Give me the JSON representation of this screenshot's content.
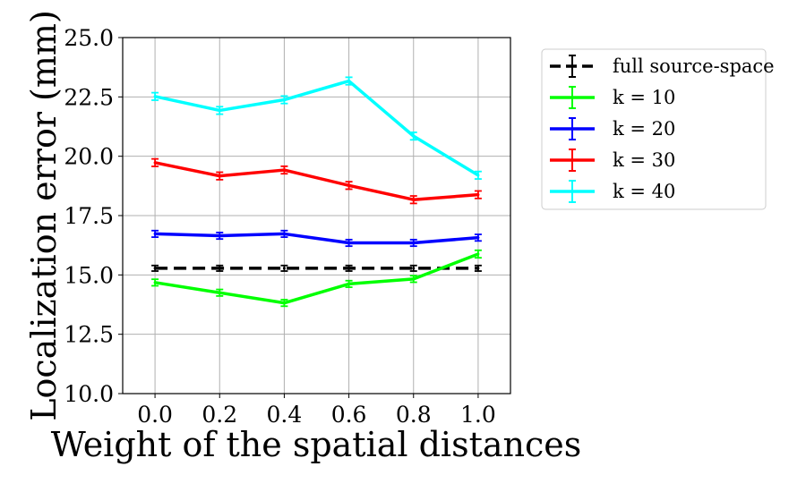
{
  "chart_data": {
    "type": "line",
    "title": "",
    "xlabel": "Weight of the spatial distances",
    "ylabel": "Localization error (mm)",
    "x": [
      0.0,
      0.2,
      0.4,
      0.6,
      0.8,
      1.0
    ],
    "x_tick_labels": [
      "0.0",
      "0.2",
      "0.4",
      "0.6",
      "0.8",
      "1.0"
    ],
    "xlim": [
      -0.1,
      1.1
    ],
    "y_ticks": [
      10.0,
      12.5,
      15.0,
      17.5,
      20.0,
      22.5,
      25.0
    ],
    "y_tick_labels": [
      "10.0",
      "12.5",
      "15.0",
      "17.5",
      "20.0",
      "22.5",
      "25.0"
    ],
    "ylim": [
      10.0,
      25.0
    ],
    "grid": true,
    "legend_position": "outside-right",
    "series": [
      {
        "name": "full source-space",
        "color": "#000000",
        "dashed": true,
        "values": [
          15.28,
          15.28,
          15.28,
          15.28,
          15.28,
          15.28
        ],
        "errors": [
          0.08,
          0.08,
          0.08,
          0.08,
          0.08,
          0.08
        ]
      },
      {
        "name": "k = 10",
        "color": "#00ff00",
        "dashed": false,
        "values": [
          14.68,
          14.25,
          13.82,
          14.62,
          14.83,
          15.88
        ],
        "errors": [
          0.1,
          0.1,
          0.1,
          0.1,
          0.1,
          0.12
        ]
      },
      {
        "name": "k = 20",
        "color": "#0000ff",
        "dashed": false,
        "values": [
          16.73,
          16.65,
          16.73,
          16.35,
          16.35,
          16.57
        ],
        "errors": [
          0.1,
          0.1,
          0.1,
          0.1,
          0.1,
          0.1
        ]
      },
      {
        "name": "k = 30",
        "color": "#ff0000",
        "dashed": false,
        "values": [
          19.73,
          19.17,
          19.42,
          18.77,
          18.17,
          18.38
        ],
        "errors": [
          0.12,
          0.12,
          0.12,
          0.12,
          0.12,
          0.12
        ]
      },
      {
        "name": "k = 40",
        "color": "#00ffff",
        "dashed": false,
        "values": [
          22.52,
          21.93,
          22.38,
          23.17,
          20.85,
          19.2
        ],
        "errors": [
          0.12,
          0.12,
          0.12,
          0.12,
          0.12,
          0.12
        ]
      }
    ]
  }
}
